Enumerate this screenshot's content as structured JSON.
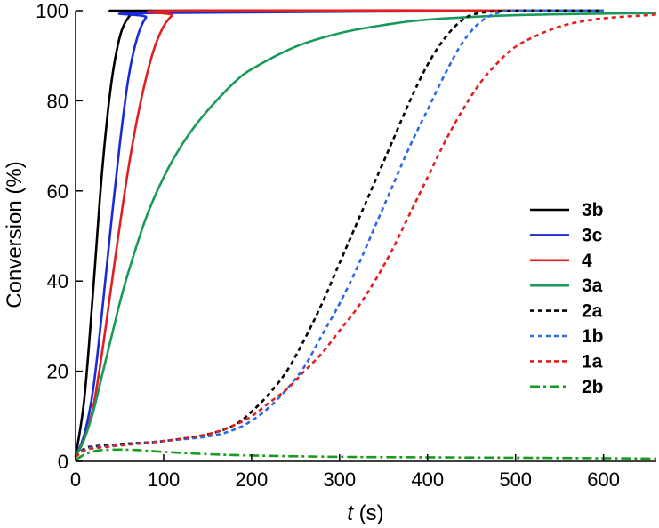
{
  "chart_data": {
    "type": "line",
    "title": "",
    "xlabel_var": "t",
    "xlabel_unit": " (s)",
    "ylabel": "Conversion (%)",
    "xlim": [
      0,
      660
    ],
    "ylim": [
      0,
      100
    ],
    "xticks": [
      0,
      100,
      200,
      300,
      400,
      500,
      600
    ],
    "yticks": [
      0,
      20,
      40,
      60,
      80,
      100
    ],
    "xtick_labels": [
      "0",
      "100",
      "200",
      "300",
      "400",
      "500",
      "600"
    ],
    "ytick_labels": [
      "0",
      "20",
      "40",
      "60",
      "80",
      "100"
    ],
    "legend_position": "right",
    "series": [
      {
        "name": "3b",
        "color": "#000000",
        "style": "solid",
        "x": [
          0,
          10,
          20,
          30,
          40,
          50,
          60,
          70,
          80,
          600
        ],
        "y": [
          1,
          14,
          38,
          64,
          83,
          94,
          98.5,
          99.8,
          100,
          100
        ]
      },
      {
        "name": "3c",
        "color": "#1a2bd6",
        "style": "solid",
        "x": [
          0,
          10,
          20,
          30,
          40,
          50,
          60,
          70,
          80,
          90,
          600
        ],
        "y": [
          1,
          6,
          16,
          33,
          52,
          70,
          85,
          94,
          98.5,
          99.5,
          100
        ]
      },
      {
        "name": "4",
        "color": "#e02020",
        "style": "solid",
        "x": [
          0,
          10,
          20,
          30,
          40,
          50,
          60,
          70,
          80,
          90,
          100,
          110,
          120,
          600
        ],
        "y": [
          1,
          5,
          12,
          24,
          38,
          52,
          65,
          76,
          85,
          92,
          96.5,
          99,
          100,
          100
        ]
      },
      {
        "name": "3a",
        "color": "#1a9a5a",
        "style": "solid",
        "x": [
          0,
          10,
          20,
          30,
          40,
          50,
          60,
          80,
          100,
          120,
          140,
          160,
          180,
          200,
          250,
          300,
          350,
          400,
          500,
          660
        ],
        "y": [
          1,
          5,
          11,
          19,
          27,
          35,
          42,
          54,
          63,
          70,
          75.5,
          80,
          84,
          87,
          92,
          95,
          96.8,
          98,
          99,
          99.5
        ]
      },
      {
        "name": "2a",
        "color": "#000000",
        "style": "dotted",
        "x": [
          0,
          10,
          20,
          50,
          100,
          150,
          180,
          200,
          220,
          240,
          260,
          280,
          300,
          320,
          340,
          360,
          380,
          400,
          420,
          440,
          460,
          500,
          600
        ],
        "y": [
          1,
          2.8,
          3.3,
          3.8,
          4.5,
          6,
          8,
          11,
          15,
          20,
          27,
          35,
          44,
          53,
          62,
          71,
          80,
          88,
          94,
          98,
          99.5,
          100,
          100
        ]
      },
      {
        "name": "1b",
        "color": "#2a6ae0",
        "style": "dotted",
        "x": [
          0,
          10,
          20,
          50,
          100,
          150,
          180,
          200,
          220,
          240,
          260,
          280,
          300,
          320,
          340,
          360,
          380,
          400,
          420,
          440,
          460,
          480,
          500,
          600
        ],
        "y": [
          1,
          2.6,
          3.1,
          3.6,
          4.5,
          5.5,
          7,
          9,
          12,
          16,
          21,
          28,
          35,
          43,
          52,
          61,
          70,
          78,
          86,
          93,
          97.5,
          99.5,
          100,
          100
        ]
      },
      {
        "name": "1a",
        "color": "#e02020",
        "style": "dotted",
        "x": [
          0,
          10,
          20,
          50,
          100,
          150,
          180,
          200,
          220,
          240,
          260,
          280,
          300,
          320,
          340,
          360,
          380,
          400,
          420,
          440,
          460,
          480,
          500,
          530,
          560,
          600,
          650,
          660
        ],
        "y": [
          1,
          2.4,
          2.9,
          3.5,
          4.5,
          6,
          8,
          10,
          13,
          16,
          20,
          24,
          29,
          34,
          40,
          47,
          55,
          63,
          71,
          78,
          84,
          88.5,
          92,
          95,
          97,
          98.3,
          99,
          99.2
        ]
      },
      {
        "name": "2b",
        "color": "#1a9a20",
        "style": "dashdot",
        "x": [
          0,
          10,
          20,
          30,
          50,
          70,
          100,
          150,
          200,
          300,
          400,
          500,
          600,
          660
        ],
        "y": [
          0.3,
          1.5,
          2.2,
          2.5,
          2.6,
          2.5,
          2.1,
          1.6,
          1.3,
          1.0,
          0.9,
          0.8,
          0.7,
          0.6
        ]
      }
    ]
  }
}
